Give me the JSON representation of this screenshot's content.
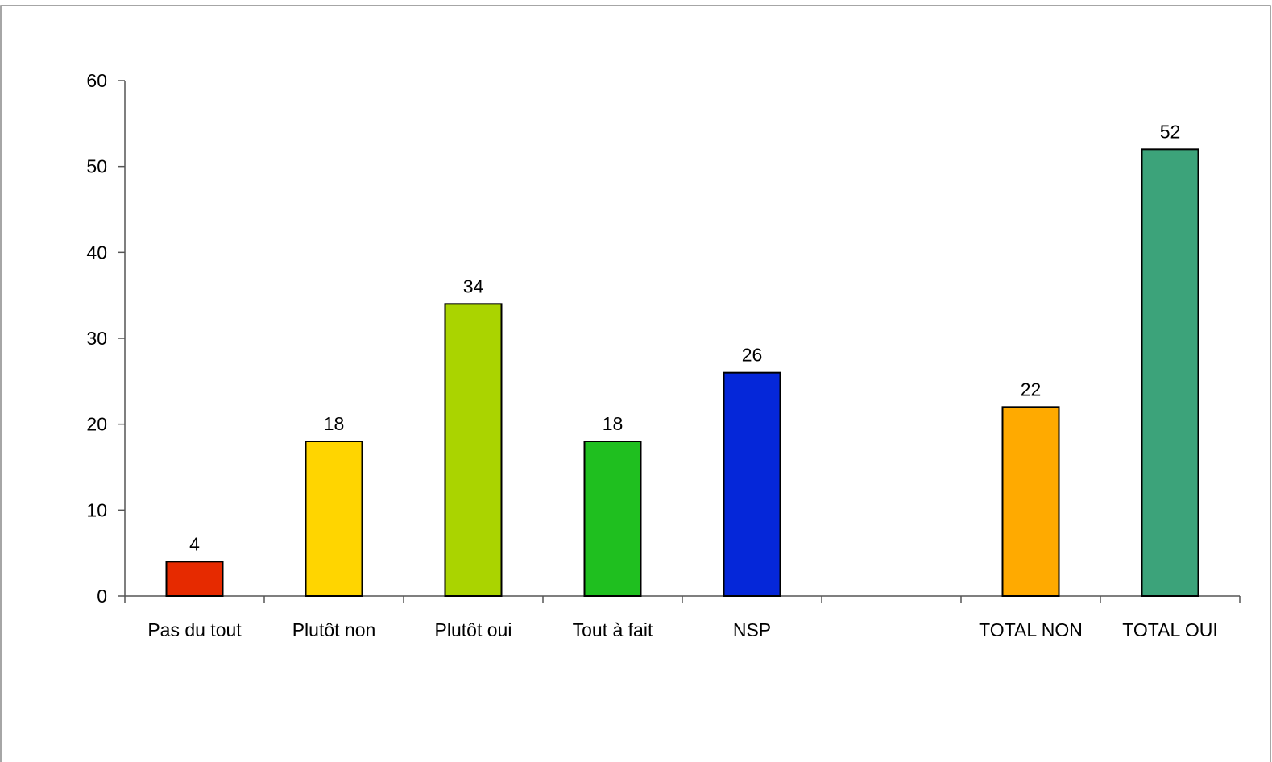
{
  "chart_data": {
    "type": "bar",
    "title": "",
    "xlabel": "",
    "ylabel": "",
    "categories": [
      "Pas du tout",
      "Plutôt non",
      "Plutôt oui",
      "Tout à fait",
      "NSP",
      "",
      "TOTAL NON",
      "TOTAL OUI"
    ],
    "values": [
      4,
      18,
      34,
      18,
      26,
      null,
      22,
      52
    ],
    "data_labels": [
      "4",
      "18",
      "34",
      "18",
      "26",
      "",
      "22",
      "52"
    ],
    "colors": [
      "#e62a00",
      "#ffd500",
      "#aad400",
      "#1fbf1f",
      "#0527d9",
      "",
      "#ffaa00",
      "#3ca37a"
    ],
    "ylim": [
      0,
      60
    ],
    "yticks": [
      "0",
      "10",
      "20",
      "30",
      "40",
      "50",
      "60"
    ],
    "grid": false,
    "legend": "none"
  }
}
